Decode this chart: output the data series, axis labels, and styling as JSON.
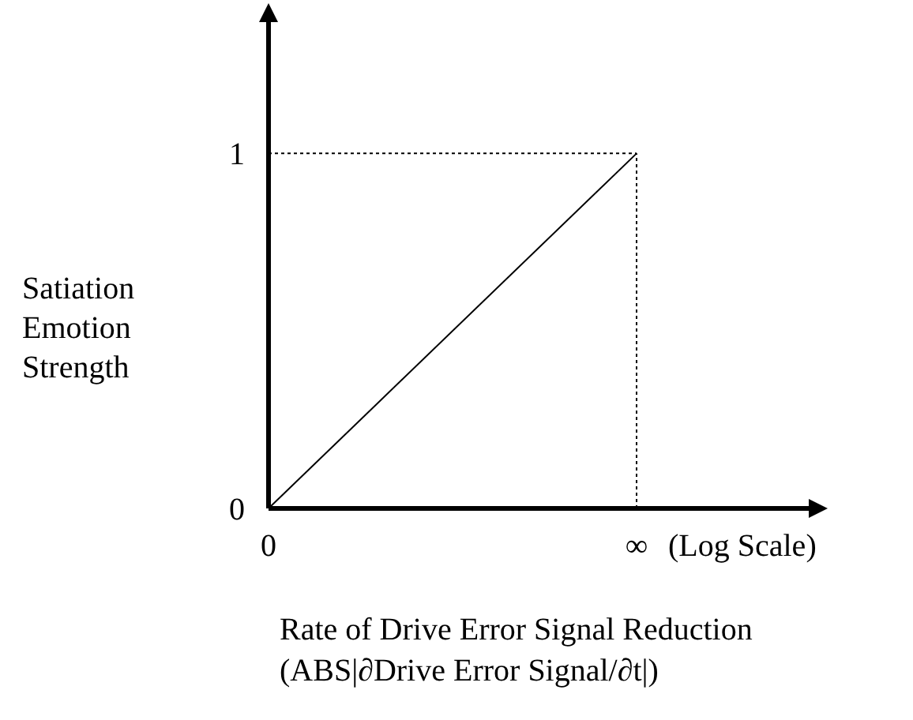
{
  "chart_data": {
    "type": "line",
    "xlabel": "Rate of Drive Error Signal Reduction\n(ABS|∂Drive Error Signal/∂t|)",
    "ylabel": "Satiation\nEmotion\nStrength",
    "categories": [
      "0",
      "∞"
    ],
    "series": [
      {
        "color": "#000000",
        "values": [
          0,
          1
        ]
      }
    ],
    "ylim": [
      0,
      1.41
    ],
    "yticks": [
      0,
      1
    ],
    "annotations": [
      {
        "text": "(Log Scale)",
        "x": "∞",
        "y": 0
      }
    ],
    "ref_lines": [
      {
        "axis": "y",
        "value": 1,
        "label": null,
        "color": "#000000",
        "line_style": "dotted"
      },
      {
        "axis": "x",
        "value": "∞",
        "label": null,
        "color": "#000000",
        "line_style": "dotted"
      }
    ],
    "grid": false,
    "marker": "none",
    "line_style": "solid"
  }
}
